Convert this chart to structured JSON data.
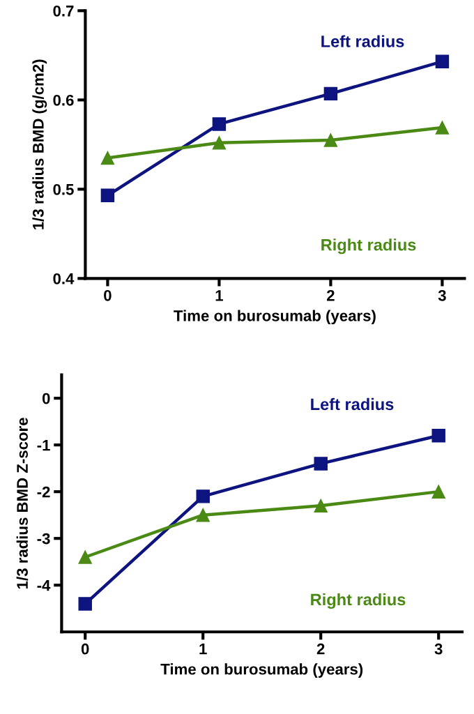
{
  "chart_data": [
    {
      "type": "line",
      "xlabel": "Time on burosumab (years)",
      "ylabel": "1/3 radius BMD (g/cm2)",
      "x": [
        0,
        1,
        2,
        3
      ],
      "xlim": [
        -0.2,
        3.2
      ],
      "xticks": [
        0,
        1,
        2,
        3
      ],
      "ylim": [
        0.4,
        0.7
      ],
      "yticks": [
        0.4,
        0.5,
        0.6,
        0.7
      ],
      "grid": false,
      "legend": false,
      "series": [
        {
          "name": "Left radius",
          "color": "#0d1480",
          "marker": "square",
          "values": [
            0.493,
            0.573,
            0.607,
            0.643
          ]
        },
        {
          "name": "Right radius",
          "color": "#4a8a14",
          "marker": "triangle",
          "values": [
            0.535,
            0.552,
            0.555,
            0.569
          ]
        }
      ]
    },
    {
      "type": "line",
      "xlabel": "Time on burosumab (years)",
      "ylabel": "1/3 radius BMD Z-score",
      "x": [
        0,
        1,
        2,
        3
      ],
      "xlim": [
        -0.2,
        3.2
      ],
      "xticks": [
        0,
        1,
        2,
        3
      ],
      "ylim": [
        -5,
        0.5
      ],
      "yticks": [
        {
          "value": -4,
          "label": "-4"
        },
        {
          "value": -3,
          "label": "-3"
        },
        {
          "value": -2,
          "label": "-2"
        },
        {
          "value": -1,
          "label": "-1"
        },
        0
      ],
      "grid": false,
      "legend": false,
      "series": [
        {
          "name": "Left radius",
          "color": "#0d1480",
          "marker": "square",
          "values": [
            -4.4,
            -2.1,
            -1.4,
            -0.8
          ]
        },
        {
          "name": "Right radius",
          "color": "#4a8a14",
          "marker": "triangle",
          "values": [
            -3.4,
            -2.5,
            -2.3,
            -2.0
          ]
        }
      ]
    }
  ]
}
